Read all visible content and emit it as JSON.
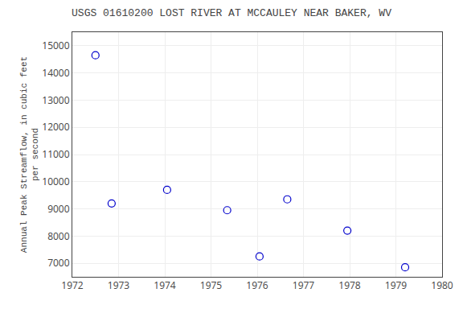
{
  "chart_data": {
    "type": "scatter",
    "title": "USGS 01610200 LOST RIVER AT MCCAULEY NEAR BAKER, WV",
    "ylabel": "Annual Peak Streamflow, in cubic feet\nper second",
    "x": [
      1972.5,
      1972.85,
      1974.05,
      1975.35,
      1976.05,
      1976.65,
      1977.95,
      1979.2
    ],
    "values": [
      14650,
      9200,
      9700,
      8950,
      7250,
      9350,
      8200,
      6850
    ],
    "xlim": [
      1972,
      1980
    ],
    "ylim": [
      6500,
      15500
    ],
    "xticks": [
      1972,
      1973,
      1974,
      1975,
      1976,
      1977,
      1978,
      1979,
      1980
    ],
    "yticks": [
      7000,
      8000,
      9000,
      10000,
      11000,
      12000,
      13000,
      14000,
      15000
    ],
    "color": "#0000cc",
    "marker": "circle-open",
    "grid": true
  }
}
